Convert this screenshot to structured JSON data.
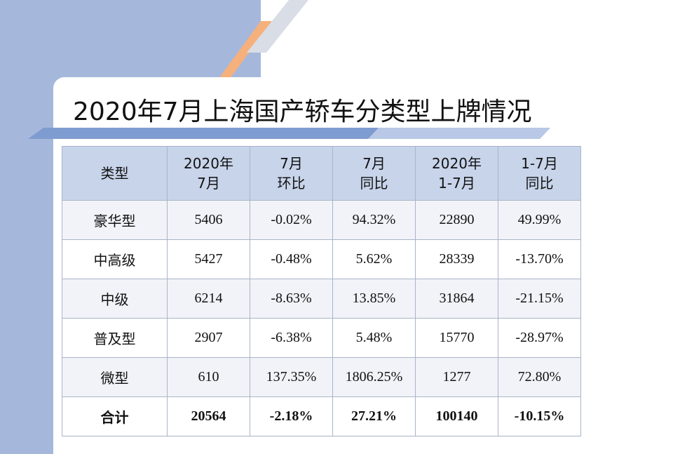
{
  "title": "2020年7月上海国产轿车分类型上牌情况",
  "colors": {
    "background_panel": "#a5b8dc",
    "header_fill": "#c7d4ea",
    "stripe_orange": "#f6b07b",
    "stripe_light": "#d9dde6",
    "underline_blue": "#7f9cd0"
  },
  "table": {
    "headers": [
      {
        "line1": "类型",
        "line2": ""
      },
      {
        "line1": "2020年",
        "line2": "7月"
      },
      {
        "line1": "7月",
        "line2": "环比"
      },
      {
        "line1": "7月",
        "line2": "同比"
      },
      {
        "line1": "2020年",
        "line2": "1-7月"
      },
      {
        "line1": "1-7月",
        "line2": "同比"
      }
    ],
    "rows": [
      {
        "type": "豪华型",
        "jul": "5406",
        "mom": "-0.02%",
        "yoy": "94.32%",
        "ytd": "22890",
        "ytd_yoy": "49.99%"
      },
      {
        "type": "中高级",
        "jul": "5427",
        "mom": "-0.48%",
        "yoy": "5.62%",
        "ytd": "28339",
        "ytd_yoy": "-13.70%"
      },
      {
        "type": "中级",
        "jul": "6214",
        "mom": "-8.63%",
        "yoy": "13.85%",
        "ytd": "31864",
        "ytd_yoy": "-21.15%"
      },
      {
        "type": "普及型",
        "jul": "2907",
        "mom": "-6.38%",
        "yoy": "5.48%",
        "ytd": "15770",
        "ytd_yoy": "-28.97%"
      },
      {
        "type": "微型",
        "jul": "610",
        "mom": "137.35%",
        "yoy": "1806.25%",
        "ytd": "1277",
        "ytd_yoy": "72.80%"
      },
      {
        "type": "合计",
        "jul": "20564",
        "mom": "-2.18%",
        "yoy": "27.21%",
        "ytd": "100140",
        "ytd_yoy": "-10.15%"
      }
    ]
  }
}
